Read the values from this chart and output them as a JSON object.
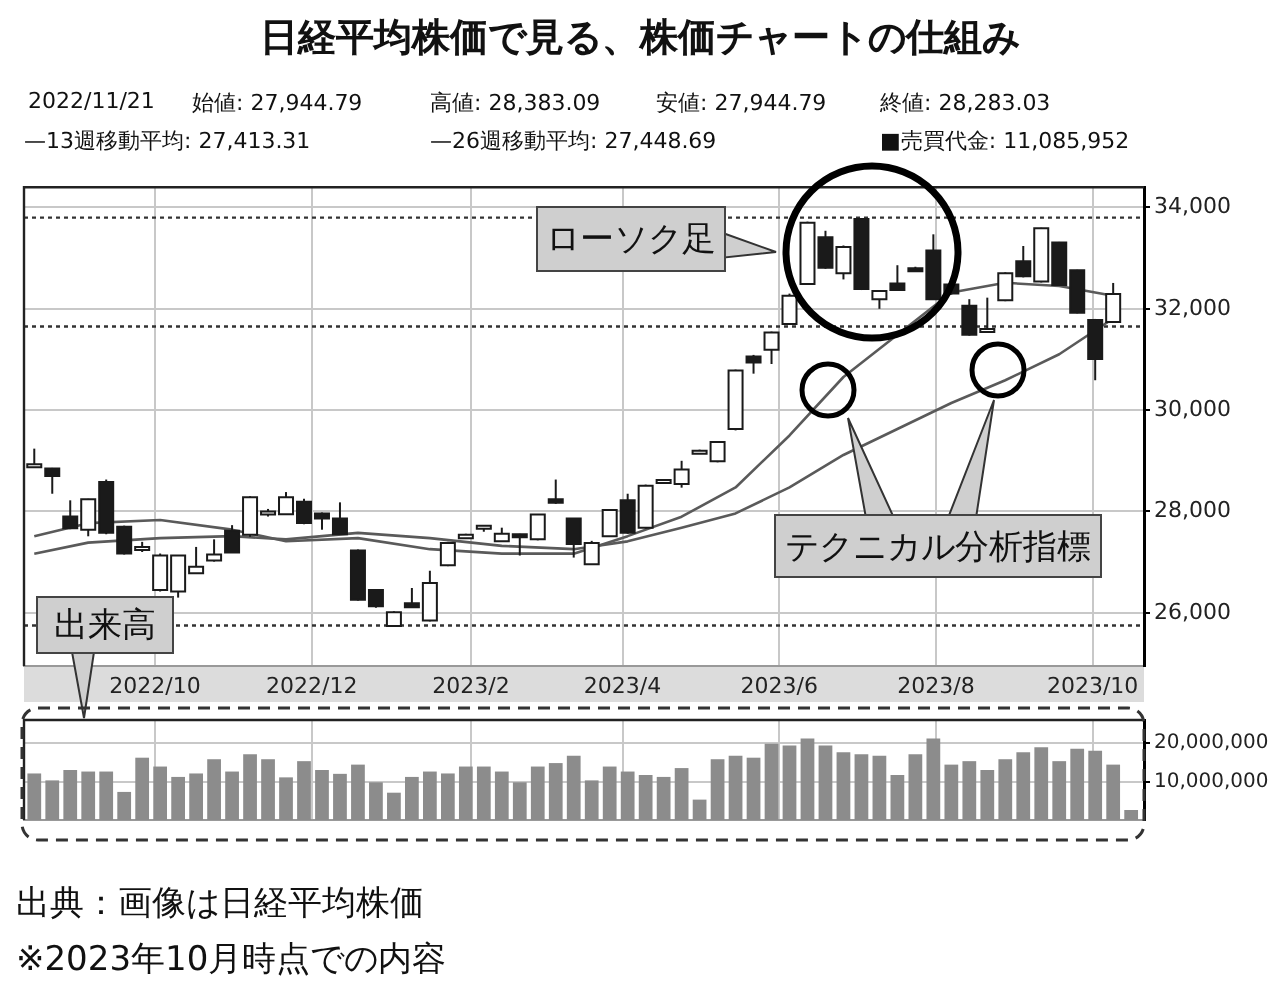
{
  "chart_data": [
    {
      "type": "candlestick",
      "title": "日経平均株価で見る、株価チャートの仕組み",
      "x": [
        "2022-08-15",
        "2022-08-22",
        "2022-08-29",
        "2022-09-05",
        "2022-09-12",
        "2022-09-19",
        "2022-09-26",
        "2022-10-03",
        "2022-10-10",
        "2022-10-17",
        "2022-10-24",
        "2022-10-31",
        "2022-11-07",
        "2022-11-14",
        "2022-11-21",
        "2022-11-28",
        "2022-12-05",
        "2022-12-12",
        "2022-12-19",
        "2022-12-26",
        "2023-01-02",
        "2023-01-09",
        "2023-01-16",
        "2023-01-23",
        "2023-01-30",
        "2023-02-06",
        "2023-02-13",
        "2023-02-20",
        "2023-02-27",
        "2023-03-06",
        "2023-03-13",
        "2023-03-20",
        "2023-03-27",
        "2023-04-03",
        "2023-04-10",
        "2023-04-17",
        "2023-04-24",
        "2023-05-01",
        "2023-05-08",
        "2023-05-15",
        "2023-05-22",
        "2023-05-29",
        "2023-06-05",
        "2023-06-12",
        "2023-06-19",
        "2023-06-26",
        "2023-07-03",
        "2023-07-10",
        "2023-07-17",
        "2023-07-24",
        "2023-07-31",
        "2023-08-07",
        "2023-08-14",
        "2023-08-21",
        "2023-08-28",
        "2023-09-04",
        "2023-09-11",
        "2023-09-18",
        "2023-09-25",
        "2023-10-02",
        "2023-10-09"
      ],
      "ohlc": [
        [
          28900,
          29240,
          28880,
          28930
        ],
        [
          28850,
          28860,
          28350,
          28700
        ],
        [
          27900,
          28220,
          27650,
          27670
        ],
        [
          27640,
          28250,
          27510,
          28240
        ],
        [
          28580,
          28630,
          27550,
          27580
        ],
        [
          27700,
          27720,
          27150,
          27170
        ],
        [
          27250,
          27400,
          27200,
          27300
        ],
        [
          26450,
          27170,
          26420,
          27130
        ],
        [
          26420,
          27140,
          26300,
          27130
        ],
        [
          26780,
          27300,
          26770,
          26910
        ],
        [
          27030,
          27450,
          27010,
          27150
        ],
        [
          27620,
          27730,
          27180,
          27190
        ],
        [
          27540,
          28300,
          27500,
          28280
        ],
        [
          27940,
          28050,
          27900,
          28000
        ],
        [
          27944.79,
          28383.09,
          27944.79,
          28283.03
        ],
        [
          28190,
          28250,
          27750,
          27770
        ],
        [
          27960,
          27980,
          27640,
          27860
        ],
        [
          27860,
          28180,
          27540,
          27550
        ],
        [
          27230,
          27250,
          26240,
          26260
        ],
        [
          26450,
          26460,
          26100,
          26130
        ],
        [
          25740,
          26030,
          25720,
          26010
        ],
        [
          26190,
          26490,
          26100,
          26110
        ],
        [
          25850,
          26830,
          25830,
          26590
        ],
        [
          26940,
          27400,
          26920,
          27380
        ],
        [
          27470,
          27560,
          27460,
          27540
        ],
        [
          27700,
          27730,
          27600,
          27720
        ],
        [
          27410,
          27680,
          27400,
          27560
        ],
        [
          27550,
          27560,
          27130,
          27490
        ],
        [
          27450,
          27950,
          27430,
          27940
        ],
        [
          28240,
          28630,
          28150,
          28170
        ],
        [
          27860,
          27870,
          27090,
          27360
        ],
        [
          26960,
          27420,
          26950,
          27380
        ],
        [
          27510,
          28040,
          27500,
          28030
        ],
        [
          28220,
          28350,
          27560,
          27580
        ],
        [
          27680,
          28530,
          27660,
          28510
        ],
        [
          28580,
          28640,
          28570,
          28620
        ],
        [
          28540,
          29000,
          28470,
          28830
        ],
        [
          29150,
          29220,
          29140,
          29200
        ],
        [
          28990,
          29390,
          28970,
          29370
        ],
        [
          29630,
          30800,
          29600,
          30780
        ],
        [
          31060,
          31090,
          30720,
          30940
        ],
        [
          31190,
          31550,
          30910,
          31530
        ],
        [
          31700,
          32300,
          31690,
          32260
        ],
        [
          32490,
          33720,
          32470,
          33700
        ],
        [
          33410,
          33540,
          32790,
          32810
        ],
        [
          32700,
          33250,
          32580,
          33220
        ],
        [
          33770,
          33780,
          32370,
          32390
        ],
        [
          32190,
          32360,
          32000,
          32350
        ],
        [
          32500,
          32860,
          32360,
          32370
        ],
        [
          32800,
          32830,
          32740,
          32750
        ],
        [
          33150,
          33470,
          32180,
          32190
        ],
        [
          32480,
          32500,
          32280,
          32300
        ],
        [
          32060,
          32190,
          31470,
          31490
        ],
        [
          31550,
          32220,
          31550,
          31600
        ],
        [
          32170,
          32720,
          32150,
          32700
        ],
        [
          32940,
          33240,
          32620,
          32640
        ],
        [
          32540,
          33600,
          32520,
          33590
        ],
        [
          33310,
          33320,
          32460,
          32470
        ],
        [
          32760,
          32770,
          31910,
          31920
        ],
        [
          31780,
          31800,
          30590,
          31010
        ],
        [
          31740,
          32510,
          31730,
          32290
        ]
      ],
      "series": [
        {
          "type": "line",
          "color": "#5a5a5a",
          "x": [
            "2022-08-15",
            "2022-09-05",
            "2022-10-03",
            "2022-10-31",
            "2022-11-21",
            "2022-12-19",
            "2023-01-16",
            "2023-02-13",
            "2023-03-13",
            "2023-04-03",
            "2023-04-24",
            "2023-05-15",
            "2023-06-05",
            "2023-06-26",
            "2023-07-17",
            "2023-08-07",
            "2023-08-28",
            "2023-09-18",
            "2023-10-09"
          ],
          "values": [
            27513,
            27769,
            27833,
            27641,
            27413.31,
            27474,
            27256,
            27167,
            27167,
            27513,
            27897,
            28474,
            29500,
            30654,
            31487,
            32321,
            32513,
            32449,
            32256
          ]
        },
        {
          "type": "line",
          "color": "#5a5a5a",
          "x": [
            "2022-08-15",
            "2022-09-05",
            "2022-10-03",
            "2022-10-31",
            "2022-11-21",
            "2022-12-19",
            "2023-01-16",
            "2023-02-13",
            "2023-03-13",
            "2023-04-03",
            "2023-04-24",
            "2023-05-15",
            "2023-06-05",
            "2023-06-26",
            "2023-07-17",
            "2023-08-07",
            "2023-08-28",
            "2023-09-18",
            "2023-10-09"
          ],
          "values": [
            27167,
            27385,
            27474,
            27513,
            27448.69,
            27577,
            27474,
            27321,
            27256,
            27410,
            27679,
            27962,
            28474,
            29115,
            29628,
            30141,
            30590,
            31103,
            31808
          ]
        }
      ],
      "marker": "none",
      "xlim": [
        "2022-08-11",
        "2023-10-21"
      ],
      "xticks": [
        {
          "value": "2022-10-01",
          "label": "2022/10"
        },
        {
          "value": "2022-12-01",
          "label": "2022/12"
        },
        {
          "value": "2023-02-01",
          "label": "2023/2"
        },
        {
          "value": "2023-04-01",
          "label": "2023/4"
        },
        {
          "value": "2023-06-01",
          "label": "2023/6"
        },
        {
          "value": "2023-08-01",
          "label": "2023/8"
        },
        {
          "value": "2023-10-01",
          "label": "2023/10"
        }
      ],
      "ylim": [
        24950,
        34400
      ],
      "yticks": [
        {
          "value": 26000,
          "label": "26,000"
        },
        {
          "value": 28000,
          "label": "28,000"
        },
        {
          "value": 30000,
          "label": "30,000"
        },
        {
          "value": 32000,
          "label": "32,000"
        },
        {
          "value": 34000,
          "label": "34,000"
        }
      ],
      "grid": true,
      "ref_lines": [
        {
          "axis": "y",
          "value": 33800,
          "line_style": "dotted",
          "color": "#333333"
        },
        {
          "axis": "y",
          "value": 31650,
          "line_style": "dotted",
          "color": "#333333"
        },
        {
          "axis": "y",
          "value": 25750,
          "line_style": "dotted",
          "color": "#333333"
        }
      ],
      "annotations": [
        "2022/11/21",
        "始値: 27,944.79",
        "高値: 28,383.09",
        "安値: 27,944.79",
        "終値: 28,283.03",
        "—13週移動平均: 27,413.31",
        "—26週移動平均: 27,448.69",
        "■売買代金: 11,085,952",
        "ローソク足",
        "テクニカル分析指標"
      ]
    },
    {
      "type": "bar",
      "x": [
        "2022-08-15",
        "2022-08-22",
        "2022-08-29",
        "2022-09-05",
        "2022-09-12",
        "2022-09-19",
        "2022-09-26",
        "2022-10-03",
        "2022-10-10",
        "2022-10-17",
        "2022-10-24",
        "2022-10-31",
        "2022-11-07",
        "2022-11-14",
        "2022-11-21",
        "2022-11-28",
        "2022-12-05",
        "2022-12-12",
        "2022-12-19",
        "2022-12-26",
        "2023-01-02",
        "2023-01-09",
        "2023-01-16",
        "2023-01-23",
        "2023-01-30",
        "2023-02-06",
        "2023-02-13",
        "2023-02-20",
        "2023-02-27",
        "2023-03-06",
        "2023-03-13",
        "2023-03-20",
        "2023-03-27",
        "2023-04-03",
        "2023-04-10",
        "2023-04-17",
        "2023-04-24",
        "2023-05-01",
        "2023-05-08",
        "2023-05-15",
        "2023-05-22",
        "2023-05-29",
        "2023-06-05",
        "2023-06-12",
        "2023-06-19",
        "2023-06-26",
        "2023-07-03",
        "2023-07-10",
        "2023-07-17",
        "2023-07-24",
        "2023-07-31",
        "2023-08-07",
        "2023-08-14",
        "2023-08-21",
        "2023-08-28",
        "2023-09-04",
        "2023-09-11",
        "2023-09-18",
        "2023-09-25",
        "2023-10-02",
        "2023-10-09",
        "2023-10-16"
      ],
      "values": [
        12100000,
        10300000,
        13000000,
        12600000,
        12600000,
        7300000,
        16200000,
        13900000,
        11200000,
        12100000,
        15800000,
        12600000,
        17100000,
        15800000,
        11085952,
        15300000,
        13000000,
        12000000,
        14400000,
        9800000,
        7100000,
        11200000,
        12600000,
        12100000,
        13900000,
        13900000,
        12600000,
        9800000,
        13900000,
        14800000,
        16700000,
        10300000,
        13900000,
        12600000,
        11700000,
        11200000,
        13500000,
        5300000,
        15800000,
        16700000,
        16200000,
        19800000,
        19400000,
        21200000,
        19400000,
        17600000,
        17100000,
        16700000,
        11700000,
        17100000,
        21200000,
        14400000,
        15300000,
        13000000,
        15800000,
        17600000,
        18900000,
        15300000,
        18500000,
        18000000,
        14400000,
        2600000
      ],
      "color": "#8c8c8c",
      "xlim": [
        "2022-08-11",
        "2023-10-21"
      ],
      "xticks": [
        {
          "value": "2022-10-01",
          "label": null
        },
        {
          "value": "2022-12-01",
          "label": null
        },
        {
          "value": "2023-02-01",
          "label": null
        },
        {
          "value": "2023-04-01",
          "label": null
        },
        {
          "value": "2023-06-01",
          "label": null
        },
        {
          "value": "2023-08-01",
          "label": null
        },
        {
          "value": "2023-10-01",
          "label": null
        }
      ],
      "ylim": [
        0,
        26000000
      ],
      "yticks": [
        {
          "value": 10000000,
          "label": "10,000,000"
        },
        {
          "value": 20000000,
          "label": "20,000,000"
        }
      ],
      "tick_labels": "y",
      "grid": true,
      "annotations": [
        "出来高",
        "出典：画像は日経平均株価",
        "※2023年10月時点での内容"
      ]
    }
  ]
}
